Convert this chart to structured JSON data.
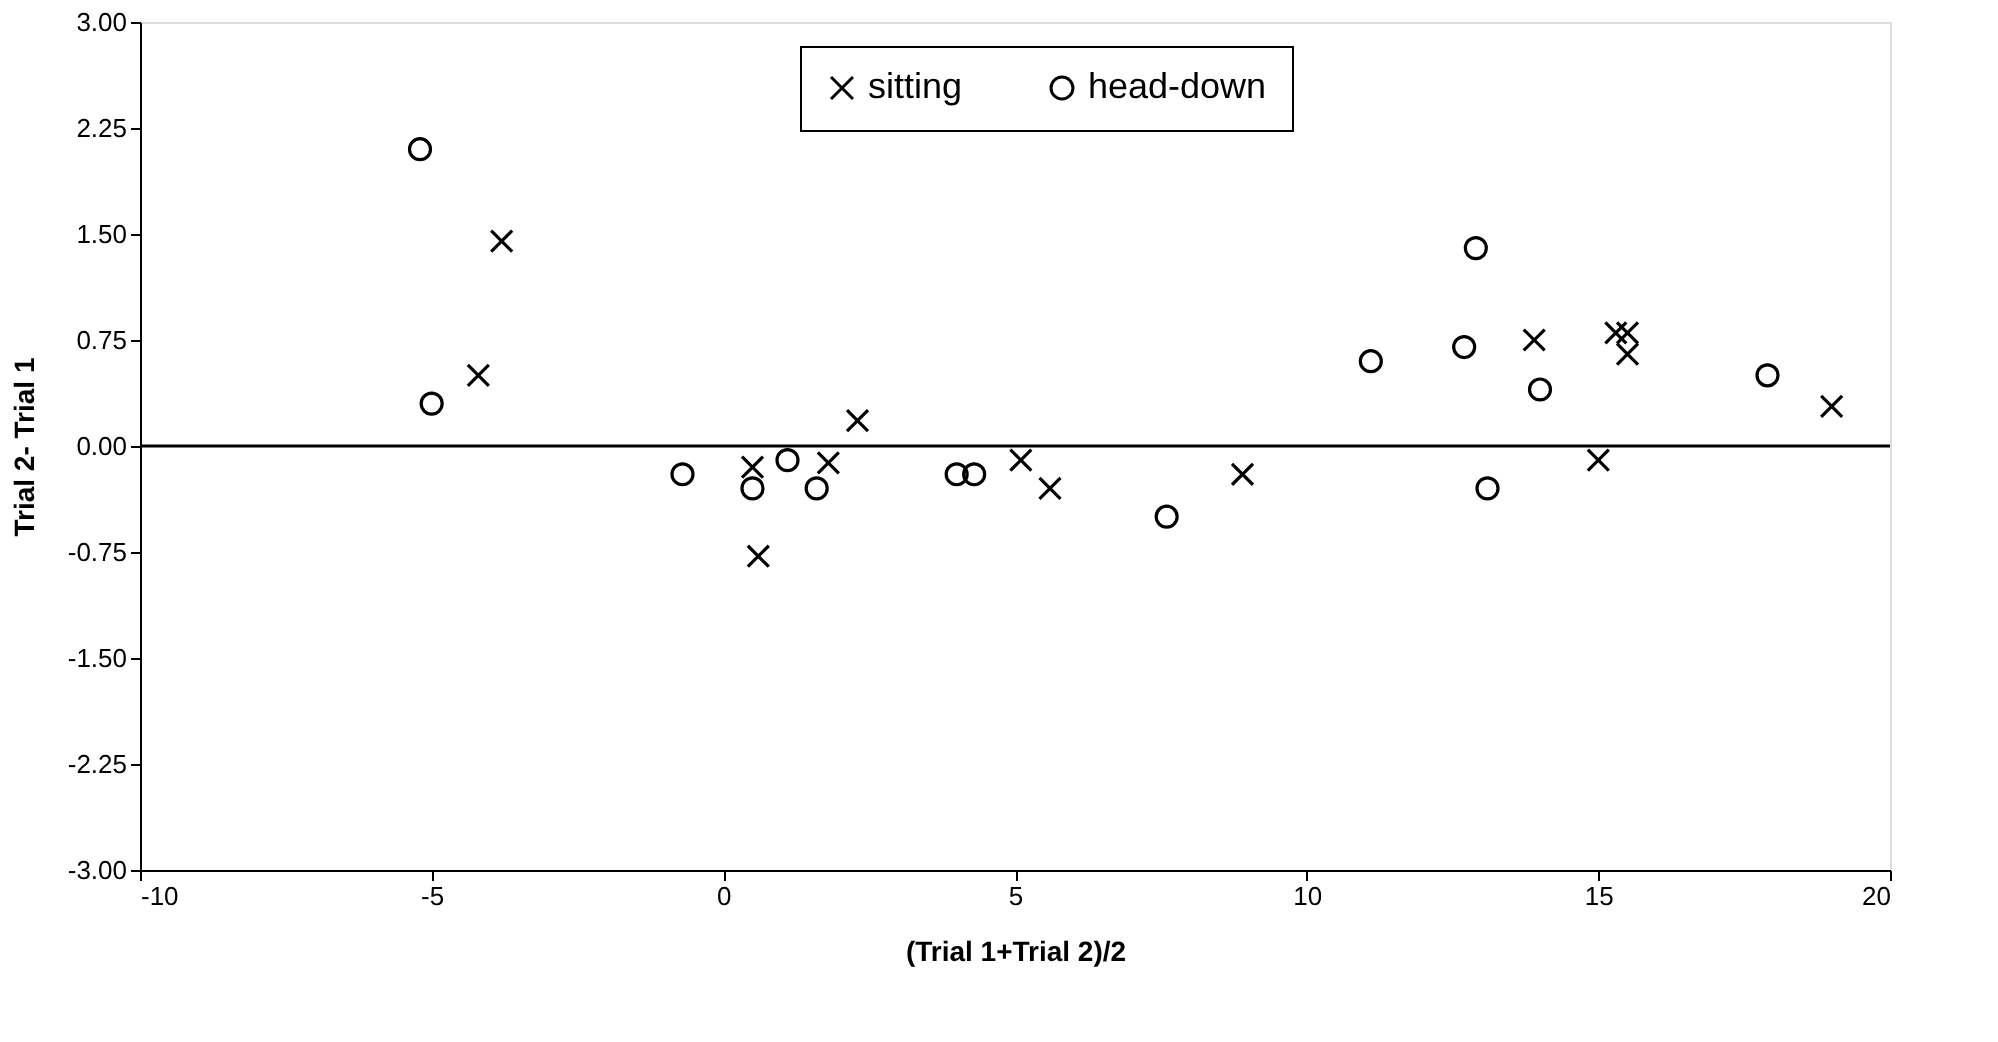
{
  "chart_data": {
    "type": "scatter",
    "xlabel": "(Trial 1+Trial 2)/2",
    "ylabel": "Trial 2- Trial 1",
    "xlim": [
      -10,
      20
    ],
    "xticks": [
      -10,
      -5,
      0,
      5,
      10,
      15,
      20
    ],
    "ylim": [
      -3,
      3
    ],
    "yticks": [
      {
        "value": -3,
        "label": "-3.00"
      },
      {
        "value": -2.25,
        "label": "-2.25"
      },
      {
        "value": -1.5,
        "label": "-1.50"
      },
      {
        "value": -0.75,
        "label": "-0.75"
      },
      {
        "value": 0,
        "label": "0.00"
      },
      {
        "value": 0.75,
        "label": "0.75"
      },
      {
        "value": 1.5,
        "label": "1.50"
      },
      {
        "value": 2.25,
        "label": "2.25"
      },
      {
        "value": 3,
        "label": "3.00"
      }
    ],
    "grid": false,
    "legend": "top",
    "ref_lines": [
      {
        "axis": "y",
        "value": 0,
        "color": "#000000"
      }
    ],
    "series": [
      {
        "name": "sitting",
        "color": "#000000",
        "marker": "cross",
        "x": [
          -4.2,
          -3.8,
          0.5,
          0.6,
          1.8,
          2.3,
          5.1,
          5.6,
          8.9,
          13.9,
          15.3,
          15.5,
          15.5,
          15.0,
          19.0
        ],
        "values": [
          0.5,
          1.45,
          -0.15,
          -0.78,
          -0.12,
          0.18,
          -0.1,
          -0.3,
          -0.2,
          0.75,
          0.8,
          0.8,
          0.65,
          -0.1,
          0.28
        ]
      },
      {
        "name": "head-down",
        "color": "#000000",
        "marker": "circle",
        "x": [
          -5.2,
          -5.0,
          -0.7,
          0.5,
          1.1,
          1.6,
          4.0,
          4.3,
          7.6,
          11.1,
          12.7,
          12.9,
          13.1,
          14.0,
          17.9
        ],
        "values": [
          2.1,
          0.3,
          -0.2,
          -0.3,
          -0.1,
          -0.3,
          -0.2,
          -0.2,
          -0.5,
          0.6,
          0.7,
          1.4,
          -0.3,
          0.4,
          0.5
        ]
      }
    ]
  }
}
